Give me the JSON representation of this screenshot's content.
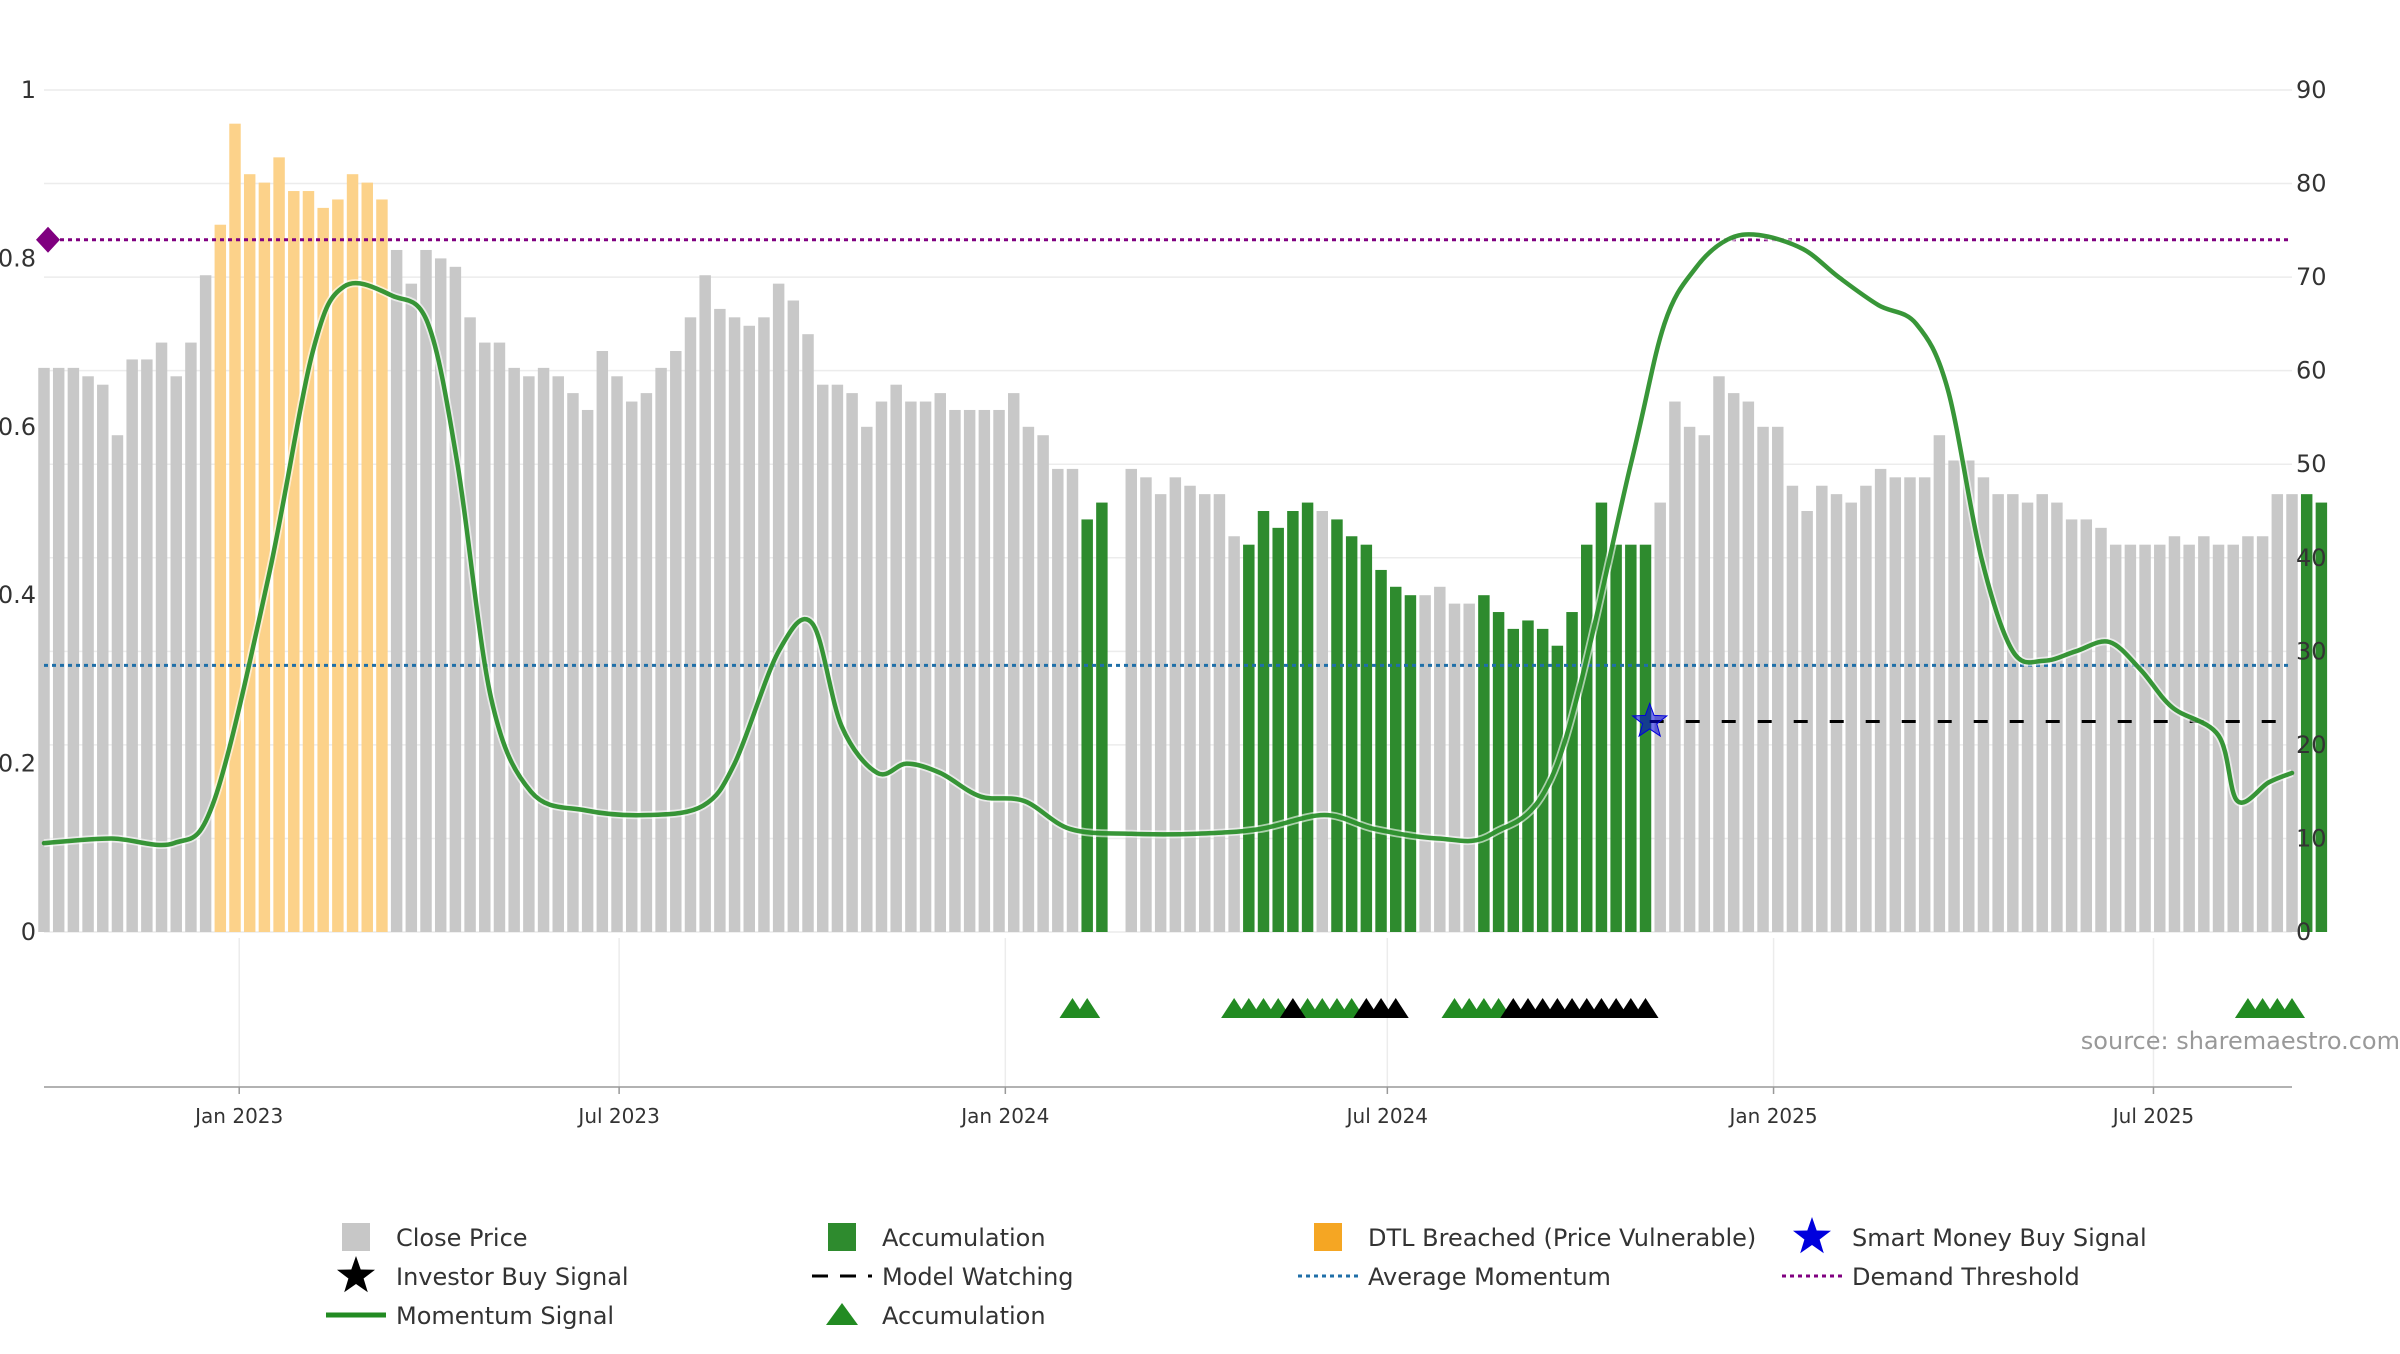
{
  "chart_data": {
    "type": "bar",
    "source_note": "source: sharemaestro.com",
    "x_axis": {
      "range": [
        "2022-09-30",
        "2025-09-05"
      ],
      "ticks": [
        {
          "date": "2023-01-01",
          "label": "Jan 2023"
        },
        {
          "date": "2023-07-01",
          "label": "Jul 2023"
        },
        {
          "date": "2024-01-01",
          "label": "Jan 2024"
        },
        {
          "date": "2024-07-01",
          "label": "Jul 2024"
        },
        {
          "date": "2025-01-01",
          "label": "Jan 2025"
        },
        {
          "date": "2025-07-01",
          "label": "Jul 2025"
        }
      ]
    },
    "y_left": {
      "ylim": [
        0,
        1
      ],
      "ticks": [
        {
          "value": 0,
          "label": "0"
        },
        {
          "value": 0.2,
          "label": "0.2"
        },
        {
          "value": 0.4,
          "label": "0.4"
        },
        {
          "value": 0.6,
          "label": "0.6"
        },
        {
          "value": 0.8,
          "label": "0.8"
        },
        {
          "value": 1,
          "label": "1"
        }
      ]
    },
    "y_right": {
      "ylim": [
        0,
        90
      ],
      "ticks": [
        {
          "value": 0,
          "label": "0"
        },
        {
          "value": 10,
          "label": "10"
        },
        {
          "value": 20,
          "label": "20"
        },
        {
          "value": 30,
          "label": "30"
        },
        {
          "value": 40,
          "label": "40"
        },
        {
          "value": 50,
          "label": "50"
        },
        {
          "value": 60,
          "label": "60"
        },
        {
          "value": 70,
          "label": "70"
        },
        {
          "value": 80,
          "label": "80"
        },
        {
          "value": 90,
          "label": "90"
        }
      ]
    },
    "colors": {
      "close_price": "#c8c8c8",
      "accumulation": "#2e8b2e",
      "dtl_breached": "#fcd28a",
      "momentum": "#228b22",
      "average_momentum": "#1f6fa8",
      "demand_threshold": "#800080",
      "smart_money": "#0000dd",
      "investor_signal": "#000000",
      "model_watching": "#000000"
    },
    "close_price": {
      "start_date": "2022-09-30",
      "interval_days": 7,
      "values": [
        0.67,
        0.67,
        0.67,
        0.66,
        0.65,
        0.59,
        0.68,
        0.68,
        0.7,
        0.66,
        0.7,
        0.78,
        0.84,
        0.96,
        0.9,
        0.89,
        0.92,
        0.88,
        0.88,
        0.86,
        0.87,
        0.9,
        0.89,
        0.87,
        0.81,
        0.77,
        0.81,
        0.8,
        0.79,
        0.73,
        0.7,
        0.7,
        0.67,
        0.66,
        0.67,
        0.66,
        0.64,
        0.62,
        0.69,
        0.66,
        0.63,
        0.64,
        0.67,
        0.69,
        0.73,
        0.78,
        0.74,
        0.73,
        0.72,
        0.73,
        0.77,
        0.75,
        0.71,
        0.65,
        0.65,
        0.64,
        0.6,
        0.63,
        0.65,
        0.63,
        0.63,
        0.64,
        0.62,
        0.62,
        0.62,
        0.62,
        0.64,
        0.6,
        0.59,
        0.55,
        0.55,
        0.49,
        0.51,
        0.0,
        0.55,
        0.54,
        0.52,
        0.54,
        0.53,
        0.52,
        0.52,
        0.47,
        0.46,
        0.5,
        0.48,
        0.5,
        0.51,
        0.5,
        0.49,
        0.47,
        0.46,
        0.43,
        0.41,
        0.4,
        0.4,
        0.41,
        0.39,
        0.39,
        0.4,
        0.38,
        0.36,
        0.37,
        0.36,
        0.34,
        0.38,
        0.46,
        0.51,
        0.46,
        0.46,
        0.46,
        0.51,
        0.63,
        0.6,
        0.59,
        0.66,
        0.64,
        0.63,
        0.6,
        0.6,
        0.53,
        0.5,
        0.53,
        0.52,
        0.51,
        0.53,
        0.55,
        0.54,
        0.54,
        0.54,
        0.59,
        0.56,
        0.56,
        0.54,
        0.52,
        0.52,
        0.51,
        0.52,
        0.51,
        0.49,
        0.49,
        0.48,
        0.46,
        0.46,
        0.46,
        0.46,
        0.47,
        0.46,
        0.47,
        0.46,
        0.46,
        0.47,
        0.47,
        0.52,
        0.52,
        0.52,
        0.51
      ],
      "accumulation_ranges": [
        [
          71,
          72
        ],
        [
          82,
          86
        ],
        [
          88,
          93
        ],
        [
          98,
          109
        ],
        [
          154,
          157
        ]
      ],
      "dtl_breached_ranges": [
        [
          12,
          23
        ]
      ]
    },
    "series": [
      {
        "name": "Momentum Signal",
        "axis": "right",
        "x": [
          "2022-09-30",
          "2022-11-01",
          "2022-12-01",
          "2022-12-20",
          "2023-01-15",
          "2023-02-05",
          "2023-02-20",
          "2023-03-15",
          "2023-04-01",
          "2023-04-15",
          "2023-05-01",
          "2023-05-20",
          "2023-06-15",
          "2023-07-15",
          "2023-08-10",
          "2023-08-25",
          "2023-09-15",
          "2023-10-01",
          "2023-10-15",
          "2023-11-01",
          "2023-11-15",
          "2023-12-01",
          "2023-12-20",
          "2024-01-10",
          "2024-02-01",
          "2024-03-01",
          "2024-04-01",
          "2024-05-01",
          "2024-06-01",
          "2024-06-25",
          "2024-07-25",
          "2024-08-20",
          "2024-09-20",
          "2024-10-25",
          "2024-11-10",
          "2024-11-25",
          "2024-12-10",
          "2024-12-25",
          "2025-01-15",
          "2025-02-01",
          "2025-02-20",
          "2025-03-10",
          "2025-03-25",
          "2025-04-10",
          "2025-04-25",
          "2025-05-10",
          "2025-05-25",
          "2025-06-10",
          "2025-06-25",
          "2025-07-10",
          "2025-08-01",
          "2025-08-10",
          "2025-08-25",
          "2025-09-05"
        ],
        "values": [
          9.5,
          10,
          9.5,
          14,
          38,
          62,
          69,
          68,
          65,
          50,
          25,
          15,
          13,
          12.5,
          13.5,
          18,
          30,
          33,
          22,
          17,
          18,
          17,
          14.5,
          14,
          11,
          10.5,
          10.5,
          11,
          12.5,
          11,
          10,
          10.5,
          18,
          50,
          65,
          71,
          74,
          74.5,
          73,
          70,
          67,
          65,
          58,
          40,
          30,
          29,
          30,
          31,
          28,
          24,
          21,
          14,
          16,
          17
        ]
      },
      {
        "name": "Average Momentum",
        "axis": "right",
        "value": 28.5
      },
      {
        "name": "Demand Threshold",
        "axis": "right",
        "value": 74
      }
    ],
    "signals": {
      "smart_money_buy": {
        "date": "2024-11-03",
        "y": 22.5
      },
      "model_watching": {
        "from": "2024-11-03",
        "to": "2025-09-05",
        "y": 22.5
      },
      "accumulation_triangles": [
        "2024-02-02",
        "2024-02-09",
        "2024-04-19",
        "2024-04-26",
        "2024-05-03",
        "2024-05-10",
        "2024-05-24",
        "2024-05-31",
        "2024-06-07",
        "2024-06-14",
        "2024-08-02",
        "2024-08-09",
        "2024-08-16",
        "2024-08-23",
        "2025-08-15",
        "2025-08-22",
        "2025-08-29",
        "2025-09-05"
      ],
      "investor_buy_triangles": [
        "2024-05-17",
        "2024-06-21",
        "2024-06-28",
        "2024-07-05",
        "2024-08-30",
        "2024-09-06",
        "2024-09-13",
        "2024-09-20",
        "2024-09-27",
        "2024-10-04",
        "2024-10-11",
        "2024-10-18",
        "2024-10-25",
        "2024-11-01"
      ]
    },
    "legend": {
      "placement": "bottom",
      "items": [
        {
          "label": "Close Price",
          "marker": "square-faded",
          "color": "#bdbdbd"
        },
        {
          "label": "Accumulation",
          "marker": "square",
          "color": "#2e8b2e"
        },
        {
          "label": "DTL Breached (Price Vulnerable)",
          "marker": "square",
          "color": "#f5a623"
        },
        {
          "label": "Smart Money Buy Signal",
          "marker": "star",
          "color": "#0000dd"
        },
        {
          "label": "Investor Buy Signal",
          "marker": "star",
          "color": "#000000"
        },
        {
          "label": "Model Watching",
          "marker": "dash",
          "color": "#000000"
        },
        {
          "label": "Average Momentum",
          "marker": "dot",
          "color": "#1f6fa8"
        },
        {
          "label": "Demand Threshold",
          "marker": "dot",
          "color": "#800080"
        },
        {
          "label": "Momentum Signal",
          "marker": "line",
          "color": "#228b22"
        },
        {
          "label": "Accumulation",
          "marker": "triangle",
          "color": "#228b22"
        }
      ]
    }
  }
}
